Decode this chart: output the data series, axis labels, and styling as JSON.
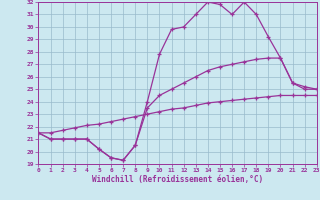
{
  "xlabel": "Windchill (Refroidissement éolien,°C)",
  "bg_color": "#cce8f0",
  "line_color": "#993399",
  "xmin": 0,
  "xmax": 23,
  "ymin": 19,
  "ymax": 32,
  "line1_x": [
    0,
    1,
    2,
    3,
    4,
    5,
    6,
    7,
    8,
    9,
    10,
    11,
    12,
    13,
    14,
    15,
    16,
    17,
    18,
    19,
    20,
    21,
    22,
    23
  ],
  "line1_y": [
    21.5,
    21.0,
    21.0,
    21.0,
    21.0,
    20.2,
    19.5,
    19.3,
    20.5,
    24.0,
    27.8,
    29.8,
    30.0,
    31.0,
    32.0,
    31.8,
    31.0,
    32.0,
    31.0,
    29.2,
    27.5,
    25.5,
    25.0,
    25.0
  ],
  "line2_x": [
    0,
    1,
    2,
    3,
    4,
    5,
    6,
    7,
    8,
    9,
    10,
    11,
    12,
    13,
    14,
    15,
    16,
    17,
    18,
    19,
    20,
    21,
    22,
    23
  ],
  "line2_y": [
    21.5,
    21.0,
    21.0,
    21.0,
    21.0,
    20.2,
    19.5,
    19.3,
    20.5,
    23.5,
    24.5,
    25.0,
    25.5,
    26.0,
    26.5,
    26.8,
    27.0,
    27.2,
    27.4,
    27.5,
    27.5,
    25.5,
    25.2,
    25.0
  ],
  "line3_x": [
    0,
    1,
    2,
    3,
    4,
    5,
    6,
    7,
    8,
    9,
    10,
    11,
    12,
    13,
    14,
    15,
    16,
    17,
    18,
    19,
    20,
    21,
    22,
    23
  ],
  "line3_y": [
    21.5,
    21.5,
    21.7,
    21.9,
    22.1,
    22.2,
    22.4,
    22.6,
    22.8,
    23.0,
    23.2,
    23.4,
    23.5,
    23.7,
    23.9,
    24.0,
    24.1,
    24.2,
    24.3,
    24.4,
    24.5,
    24.5,
    24.5,
    24.5
  ],
  "grid_color": "#99bbcc",
  "yticks": [
    19,
    20,
    21,
    22,
    23,
    24,
    25,
    26,
    27,
    28,
    29,
    30,
    31,
    32
  ],
  "xticks": [
    0,
    1,
    2,
    3,
    4,
    5,
    6,
    7,
    8,
    9,
    10,
    11,
    12,
    13,
    14,
    15,
    16,
    17,
    18,
    19,
    20,
    21,
    22,
    23
  ]
}
